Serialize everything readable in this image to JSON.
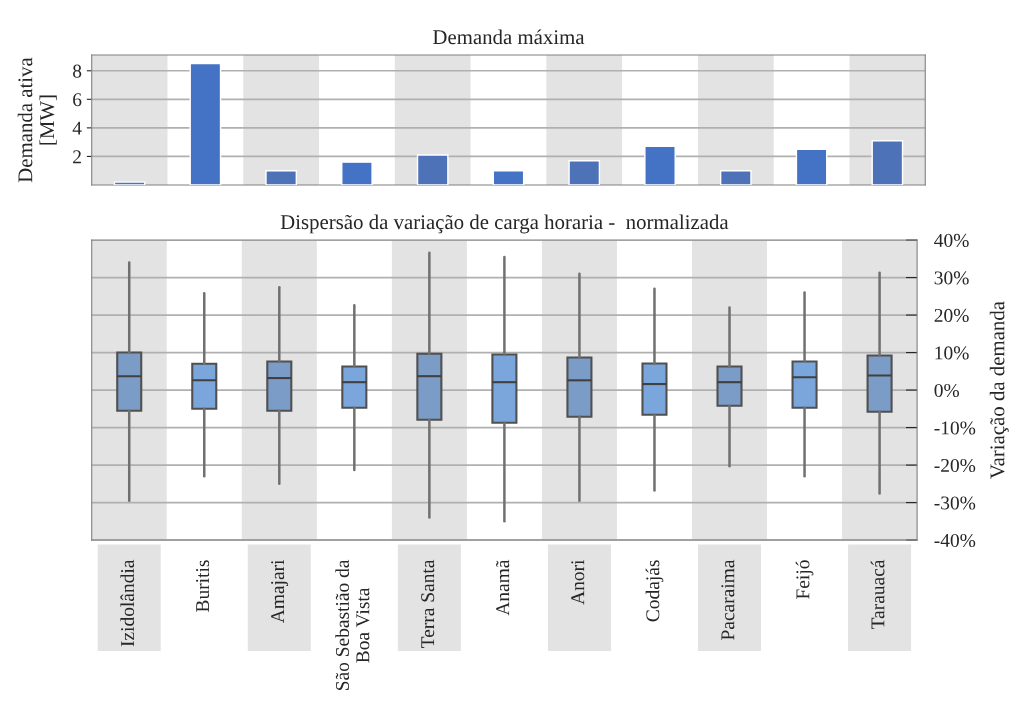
{
  "chart_data": [
    {
      "type": "bar",
      "title": "Demanda máxima",
      "ylabel": "Demanda ativa\n[MW]",
      "categories": [
        "Izidolândia",
        "Buritis",
        "Amajari",
        "São Sebastião da\nBoa Vista",
        "Terra Santa",
        "Anamã",
        "Anori",
        "Codajás",
        "Pacaraima",
        "Feijó",
        "Tarauacá"
      ],
      "values": [
        0.2,
        8.5,
        1.0,
        1.6,
        2.1,
        1.0,
        1.7,
        2.7,
        1.0,
        2.5,
        3.1
      ],
      "colors": [
        "#4e72b8",
        "#4472c4",
        "#4e72b8",
        "#4472c4",
        "#4e72b8",
        "#4472c4",
        "#4e72b8",
        "#4472c4",
        "#4e72b8",
        "#4472c4",
        "#4e72b8"
      ],
      "ylim": [
        0,
        9.1
      ],
      "yticks": [
        2,
        4,
        6,
        8
      ],
      "grid": "y",
      "tick_labels": "y",
      "bands": [
        {
          "axis": "x",
          "from": "Izidolândia",
          "to": "Izidolândia",
          "color": "#e3e3e3"
        },
        {
          "axis": "x",
          "from": "Amajari",
          "to": "Amajari",
          "color": "#e3e3e3"
        },
        {
          "axis": "x",
          "from": "Terra Santa",
          "to": "Terra Santa",
          "color": "#e3e3e3"
        },
        {
          "axis": "x",
          "from": "Anori",
          "to": "Anori",
          "color": "#e3e3e3"
        },
        {
          "axis": "x",
          "from": "Pacaraima",
          "to": "Pacaraima",
          "color": "#e3e3e3"
        },
        {
          "axis": "x",
          "from": "Tarauacá",
          "to": "Tarauacá",
          "color": "#e3e3e3"
        }
      ]
    },
    {
      "type": "box",
      "title": "Dispersão da variação de carga horaria -  normalizada",
      "ylabel": "Variação da demanda",
      "categories": [
        "Izidolândia",
        "Buritis",
        "Amajari",
        "São Sebastião da\nBoa Vista",
        "Terra Santa",
        "Anamã",
        "Anori",
        "Codajás",
        "Pacaraima",
        "Feijó",
        "Tarauacá"
      ],
      "boxes": [
        {
          "low": -29.5,
          "q1": -5.5,
          "median": 3.7,
          "q3": 10,
          "high": 34
        },
        {
          "low": -23,
          "q1": -5,
          "median": 2.6,
          "q3": 7,
          "high": 25.8
        },
        {
          "low": -25,
          "q1": -5.5,
          "median": 3.2,
          "q3": 7.6,
          "high": 27.4
        },
        {
          "low": -21.3,
          "q1": -4.7,
          "median": 2.1,
          "q3": 6.3,
          "high": 22.6
        },
        {
          "low": -34,
          "q1": -7.9,
          "median": 3.7,
          "q3": 9.7,
          "high": 36.6
        },
        {
          "low": -35,
          "q1": -8.7,
          "median": 2.1,
          "q3": 9.5,
          "high": 35.5
        },
        {
          "low": -29.5,
          "q1": -7.1,
          "median": 2.6,
          "q3": 8.7,
          "high": 31
        },
        {
          "low": -26.8,
          "q1": -6.6,
          "median": 1.6,
          "q3": 7.1,
          "high": 27
        },
        {
          "low": -20.3,
          "q1": -4.2,
          "median": 2.1,
          "q3": 6.3,
          "high": 22
        },
        {
          "low": -23,
          "q1": -4.7,
          "median": 3.4,
          "q3": 7.6,
          "high": 26
        },
        {
          "low": -27.6,
          "q1": -5.8,
          "median": 3.9,
          "q3": 9.2,
          "high": 31.3
        }
      ],
      "colors": [
        "#7a9cc6",
        "#7aa6dc",
        "#7a9cc6",
        "#7aa6dc",
        "#7a9cc6",
        "#7aa6dc",
        "#7a9cc6",
        "#7aa6dc",
        "#7a9cc6",
        "#7aa6dc",
        "#7a9cc6"
      ],
      "ylim": [
        -40,
        40
      ],
      "yticks": [
        {
          "value": -40,
          "label": "-40%"
        },
        {
          "value": -30,
          "label": "-30%"
        },
        {
          "value": -20,
          "label": "-20%"
        },
        {
          "value": -10,
          "label": "-10%"
        },
        {
          "value": 0,
          "label": "0%"
        },
        {
          "value": 10,
          "label": "10%"
        },
        {
          "value": 20,
          "label": "20%"
        },
        {
          "value": 30,
          "label": "30%"
        },
        {
          "value": 40,
          "label": "40%"
        }
      ],
      "grid": "y",
      "bands": [
        {
          "axis": "x",
          "from": "Izidolândia",
          "to": "Izidolândia",
          "color": "#e3e3e3"
        },
        {
          "axis": "x",
          "from": "Amajari",
          "to": "Amajari",
          "color": "#e3e3e3"
        },
        {
          "axis": "x",
          "from": "Terra Santa",
          "to": "Terra Santa",
          "color": "#e3e3e3"
        },
        {
          "axis": "x",
          "from": "Anori",
          "to": "Anori",
          "color": "#e3e3e3"
        },
        {
          "axis": "x",
          "from": "Pacaraima",
          "to": "Pacaraima",
          "color": "#e3e3e3"
        },
        {
          "axis": "x",
          "from": "Tarauacá",
          "to": "Tarauacá",
          "color": "#e3e3e3"
        }
      ]
    }
  ]
}
